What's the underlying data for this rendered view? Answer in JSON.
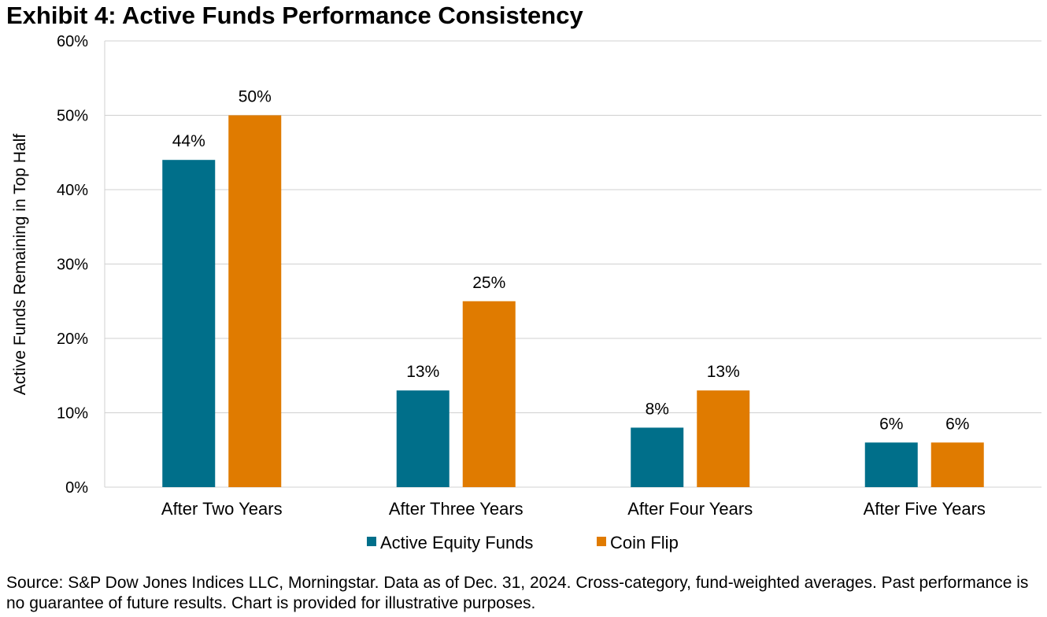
{
  "title": "Exhibit 4: Active Funds Performance Consistency",
  "source": "Source: S&P Dow Jones Indices LLC, Morningstar. Data as of Dec. 31, 2024. Cross-category, fund-weighted averages. Past performance is no guarantee of future results. Chart is provided for illustrative purposes.",
  "colors": {
    "active": "#006f8a",
    "coin": "#e07b00",
    "grid": "#d0d0d0"
  },
  "chart_data": {
    "type": "bar",
    "title": "Exhibit 4: Active Funds Performance Consistency",
    "xlabel": "",
    "ylabel": "Active Funds Remaining in Top Half",
    "ylim": [
      0,
      60
    ],
    "yticks": [
      0,
      10,
      20,
      30,
      40,
      50,
      60
    ],
    "ytick_labels": [
      "0%",
      "10%",
      "20%",
      "30%",
      "40%",
      "50%",
      "60%"
    ],
    "categories": [
      "After Two Years",
      "After Three Years",
      "After Four Years",
      "After Five Years"
    ],
    "series": [
      {
        "name": "Active Equity Funds",
        "values": [
          44,
          13,
          8,
          6
        ],
        "labels": [
          "44%",
          "13%",
          "8%",
          "6%"
        ]
      },
      {
        "name": "Coin Flip",
        "values": [
          50,
          25,
          13,
          6
        ],
        "labels": [
          "50%",
          "25%",
          "13%",
          "6%"
        ]
      }
    ],
    "grid": true,
    "legend": "bottom-center"
  }
}
